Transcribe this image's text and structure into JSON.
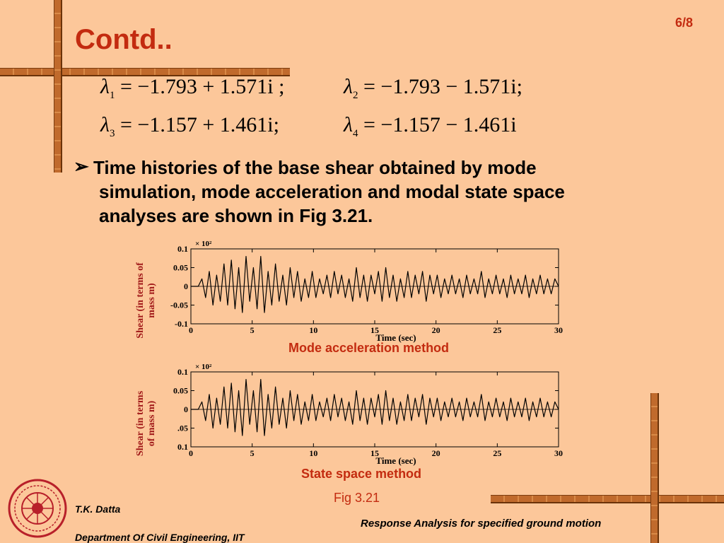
{
  "slide": {
    "page_number": "6/8",
    "title": "Contd..",
    "eigenvalues": [
      {
        "sub": "1",
        "value": "= −1.793 + 1.571i ;"
      },
      {
        "sub": "2",
        "value": "= −1.793 − 1.571i;"
      },
      {
        "sub": "3",
        "value": "= −1.157 + 1.461i;"
      },
      {
        "sub": "4",
        "value": "= −1.157 − 1.461i"
      }
    ],
    "bullet_marker": "➢",
    "bullet_lines": [
      "Time histories of the base shear obtained by mode",
      "simulation, mode acceleration and modal state space",
      "analyses are shown in Fig 3.21."
    ],
    "figure_caption": "Fig 3.21",
    "footer": {
      "author": "T.K. Datta",
      "department": "Department Of Civil Engineering, IIT",
      "topic": "Response Analysis for specified ground motion"
    }
  },
  "chart_data": [
    {
      "type": "line",
      "title": "Mode acceleration method",
      "xlabel": "Time (sec)",
      "ylabel_lines": [
        "Shear (in terms of",
        "mass m)"
      ],
      "scale_label": "× 10²",
      "xlim": [
        0,
        30
      ],
      "ylim": [
        -0.1,
        0.1
      ],
      "xticks": [
        "0",
        "5",
        "10",
        "15",
        "20",
        "25",
        "30"
      ],
      "yticks": [
        "0.1",
        "0.05",
        "0",
        "-0.05",
        "-0.1"
      ],
      "series": [
        {
          "x": [
            0,
            0.6,
            0.9,
            1.2,
            1.5,
            1.8,
            2.1,
            2.4,
            2.7,
            3.0,
            3.3,
            3.6,
            3.9,
            4.2,
            4.5,
            4.8,
            5.1,
            5.4,
            5.7,
            6.0,
            6.3,
            6.6,
            6.9,
            7.2,
            7.5,
            7.8,
            8.1,
            8.4,
            8.7,
            9.0,
            9.3,
            9.6,
            9.9,
            10.2,
            10.5,
            10.8,
            11.1,
            11.4,
            11.7,
            12.0,
            12.3,
            12.6,
            12.9,
            13.2,
            13.5,
            13.8,
            14.1,
            14.4,
            14.7,
            15.0,
            15.3,
            15.6,
            15.9,
            16.2,
            16.5,
            16.8,
            17.1,
            17.4,
            17.7,
            18.0,
            18.3,
            18.6,
            18.9,
            19.2,
            19.5,
            19.8,
            20.1,
            20.4,
            20.7,
            21.0,
            21.3,
            21.6,
            21.9,
            22.2,
            22.5,
            22.8,
            23.1,
            23.4,
            23.7,
            24.0,
            24.3,
            24.6,
            24.9,
            25.2,
            25.5,
            25.8,
            26.1,
            26.4,
            26.7,
            27.0,
            27.3,
            27.6,
            27.9,
            28.2,
            28.5,
            28.8,
            29.1,
            29.4,
            29.7,
            30.0
          ],
          "y": [
            0,
            0,
            0.02,
            -0.03,
            0.04,
            -0.05,
            0.03,
            -0.04,
            0.06,
            -0.05,
            0.07,
            -0.06,
            0.05,
            -0.07,
            0.08,
            -0.04,
            0.05,
            -0.06,
            0.08,
            -0.07,
            0.04,
            -0.05,
            0.06,
            -0.04,
            0.03,
            -0.05,
            0.05,
            -0.03,
            0.04,
            -0.04,
            0.02,
            -0.03,
            0.04,
            -0.03,
            0.02,
            -0.02,
            0.03,
            -0.03,
            0.04,
            -0.02,
            0.03,
            -0.03,
            0.02,
            -0.04,
            0.05,
            -0.03,
            0.03,
            -0.04,
            0.03,
            -0.02,
            0.04,
            -0.04,
            0.05,
            -0.03,
            0.03,
            -0.04,
            0.02,
            -0.03,
            0.04,
            -0.03,
            0.03,
            -0.02,
            0.04,
            -0.04,
            0.03,
            -0.02,
            0.03,
            -0.03,
            0.02,
            -0.02,
            0.03,
            -0.02,
            0.02,
            -0.03,
            0.03,
            -0.02,
            0.02,
            -0.02,
            0.04,
            -0.03,
            0.02,
            -0.02,
            0.03,
            -0.02,
            0.02,
            -0.03,
            0.03,
            -0.02,
            0.02,
            -0.02,
            0.03,
            -0.03,
            0.02,
            -0.02,
            0.03,
            -0.02,
            0.02,
            -0.02,
            0.02,
            0
          ]
        }
      ]
    },
    {
      "type": "line",
      "title": "State space method",
      "xlabel": "Time (sec)",
      "ylabel_lines": [
        "Shear (in terms",
        "of mass m)"
      ],
      "scale_label": "× 10²",
      "xlim": [
        0,
        30
      ],
      "ylim": [
        -0.1,
        0.1
      ],
      "xticks": [
        "0",
        "5",
        "10",
        "15",
        "20",
        "25",
        "30"
      ],
      "yticks": [
        "0.1",
        "0.05",
        "0",
        ".05",
        "0.1"
      ],
      "series": [
        {
          "x": [
            0,
            0.6,
            0.9,
            1.2,
            1.5,
            1.8,
            2.1,
            2.4,
            2.7,
            3.0,
            3.3,
            3.6,
            3.9,
            4.2,
            4.5,
            4.8,
            5.1,
            5.4,
            5.7,
            6.0,
            6.3,
            6.6,
            6.9,
            7.2,
            7.5,
            7.8,
            8.1,
            8.4,
            8.7,
            9.0,
            9.3,
            9.6,
            9.9,
            10.2,
            10.5,
            10.8,
            11.1,
            11.4,
            11.7,
            12.0,
            12.3,
            12.6,
            12.9,
            13.2,
            13.5,
            13.8,
            14.1,
            14.4,
            14.7,
            15.0,
            15.3,
            15.6,
            15.9,
            16.2,
            16.5,
            16.8,
            17.1,
            17.4,
            17.7,
            18.0,
            18.3,
            18.6,
            18.9,
            19.2,
            19.5,
            19.8,
            20.1,
            20.4,
            20.7,
            21.0,
            21.3,
            21.6,
            21.9,
            22.2,
            22.5,
            22.8,
            23.1,
            23.4,
            23.7,
            24.0,
            24.3,
            24.6,
            24.9,
            25.2,
            25.5,
            25.8,
            26.1,
            26.4,
            26.7,
            27.0,
            27.3,
            27.6,
            27.9,
            28.2,
            28.5,
            28.8,
            29.1,
            29.4,
            29.7,
            30.0
          ],
          "y": [
            0,
            0,
            0.02,
            -0.03,
            0.04,
            -0.05,
            0.03,
            -0.04,
            0.06,
            -0.05,
            0.07,
            -0.06,
            0.05,
            -0.07,
            0.08,
            -0.04,
            0.05,
            -0.06,
            0.08,
            -0.07,
            0.04,
            -0.05,
            0.06,
            -0.04,
            0.03,
            -0.05,
            0.05,
            -0.03,
            0.04,
            -0.04,
            0.02,
            -0.03,
            0.04,
            -0.03,
            0.02,
            -0.02,
            0.03,
            -0.03,
            0.04,
            -0.02,
            0.03,
            -0.03,
            0.02,
            -0.04,
            0.05,
            -0.03,
            0.03,
            -0.04,
            0.03,
            -0.02,
            0.04,
            -0.04,
            0.05,
            -0.03,
            0.03,
            -0.04,
            0.02,
            -0.03,
            0.04,
            -0.03,
            0.03,
            -0.02,
            0.04,
            -0.04,
            0.03,
            -0.02,
            0.03,
            -0.03,
            0.02,
            -0.02,
            0.03,
            -0.02,
            0.02,
            -0.03,
            0.03,
            -0.02,
            0.02,
            -0.02,
            0.04,
            -0.03,
            0.02,
            -0.02,
            0.03,
            -0.02,
            0.02,
            -0.03,
            0.03,
            -0.02,
            0.02,
            -0.02,
            0.03,
            -0.03,
            0.02,
            -0.02,
            0.03,
            -0.02,
            0.02,
            -0.02,
            0.02,
            0
          ]
        }
      ]
    }
  ]
}
